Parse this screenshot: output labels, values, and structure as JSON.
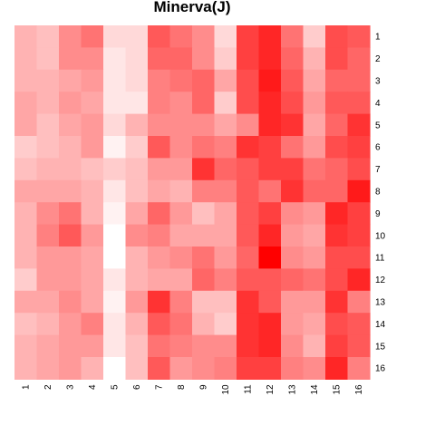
{
  "chart_data": {
    "type": "heatmap",
    "title": "Minerva(J)",
    "xlabel": "",
    "ylabel": "",
    "x_labels": [
      "1",
      "2",
      "3",
      "4",
      "5",
      "6",
      "7",
      "8",
      "9",
      "10",
      "11",
      "12",
      "13",
      "14",
      "15",
      "16"
    ],
    "y_labels": [
      "1",
      "2",
      "3",
      "4",
      "5",
      "6",
      "7",
      "8",
      "9",
      "10",
      "11",
      "12",
      "13",
      "14",
      "15",
      "16"
    ],
    "value_range": [
      0,
      1
    ],
    "colors": {
      "low": "#ffffff",
      "high": "#ff0000"
    },
    "legend": "none",
    "grid": false,
    "values": [
      [
        0.3,
        0.25,
        0.45,
        0.55,
        0.15,
        0.15,
        0.65,
        0.55,
        0.45,
        0.15,
        0.75,
        0.85,
        0.55,
        0.2,
        0.7,
        0.65
      ],
      [
        0.3,
        0.25,
        0.45,
        0.45,
        0.1,
        0.15,
        0.6,
        0.6,
        0.45,
        0.2,
        0.75,
        0.85,
        0.6,
        0.3,
        0.7,
        0.6
      ],
      [
        0.3,
        0.3,
        0.35,
        0.4,
        0.1,
        0.15,
        0.5,
        0.55,
        0.6,
        0.35,
        0.7,
        0.9,
        0.65,
        0.35,
        0.6,
        0.6
      ],
      [
        0.35,
        0.3,
        0.4,
        0.35,
        0.1,
        0.1,
        0.5,
        0.45,
        0.6,
        0.2,
        0.7,
        0.85,
        0.7,
        0.4,
        0.65,
        0.65
      ],
      [
        0.35,
        0.25,
        0.35,
        0.4,
        0.15,
        0.3,
        0.45,
        0.45,
        0.45,
        0.35,
        0.45,
        0.85,
        0.8,
        0.35,
        0.6,
        0.8
      ],
      [
        0.2,
        0.25,
        0.3,
        0.4,
        0.05,
        0.2,
        0.65,
        0.45,
        0.55,
        0.5,
        0.8,
        0.75,
        0.55,
        0.4,
        0.7,
        0.75
      ],
      [
        0.25,
        0.3,
        0.3,
        0.25,
        0.2,
        0.25,
        0.4,
        0.4,
        0.8,
        0.6,
        0.65,
        0.75,
        0.75,
        0.55,
        0.6,
        0.7
      ],
      [
        0.35,
        0.35,
        0.35,
        0.3,
        0.1,
        0.25,
        0.35,
        0.3,
        0.5,
        0.5,
        0.65,
        0.55,
        0.8,
        0.6,
        0.6,
        0.9
      ],
      [
        0.3,
        0.45,
        0.55,
        0.3,
        0.05,
        0.35,
        0.6,
        0.4,
        0.25,
        0.35,
        0.65,
        0.75,
        0.45,
        0.4,
        0.85,
        0.75
      ],
      [
        0.3,
        0.5,
        0.65,
        0.4,
        0.0,
        0.45,
        0.5,
        0.35,
        0.35,
        0.35,
        0.65,
        0.85,
        0.4,
        0.35,
        0.8,
        0.75
      ],
      [
        0.3,
        0.4,
        0.4,
        0.35,
        0.0,
        0.3,
        0.4,
        0.45,
        0.55,
        0.4,
        0.6,
        1.0,
        0.45,
        0.4,
        0.7,
        0.7
      ],
      [
        0.2,
        0.4,
        0.4,
        0.35,
        0.1,
        0.3,
        0.35,
        0.35,
        0.6,
        0.5,
        0.65,
        0.65,
        0.6,
        0.55,
        0.7,
        0.85
      ],
      [
        0.35,
        0.35,
        0.45,
        0.35,
        0.05,
        0.4,
        0.8,
        0.5,
        0.25,
        0.25,
        0.8,
        0.65,
        0.4,
        0.4,
        0.8,
        0.5
      ],
      [
        0.25,
        0.3,
        0.4,
        0.5,
        0.1,
        0.3,
        0.65,
        0.55,
        0.3,
        0.2,
        0.8,
        0.85,
        0.4,
        0.35,
        0.7,
        0.65
      ],
      [
        0.3,
        0.35,
        0.4,
        0.4,
        0.1,
        0.25,
        0.55,
        0.5,
        0.45,
        0.45,
        0.8,
        0.85,
        0.45,
        0.3,
        0.75,
        0.65
      ],
      [
        0.3,
        0.35,
        0.4,
        0.3,
        0.0,
        0.25,
        0.65,
        0.4,
        0.45,
        0.5,
        0.75,
        0.75,
        0.5,
        0.45,
        0.85,
        0.5
      ]
    ]
  }
}
